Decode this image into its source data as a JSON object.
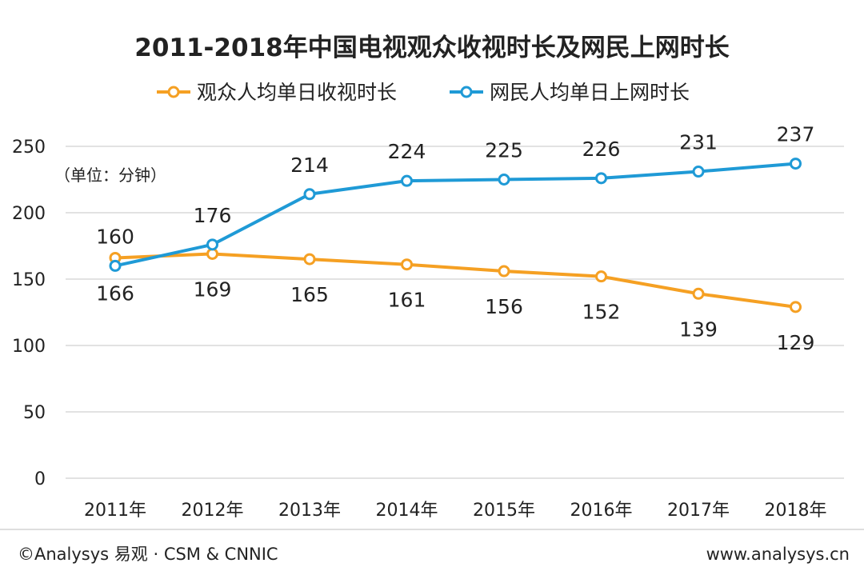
{
  "chart_data": {
    "type": "line",
    "title": "2011-2018年中国电视观众收视时长及网民上网时长",
    "unit_label": "（单位：分钟）",
    "categories": [
      "2011年",
      "2012年",
      "2013年",
      "2014年",
      "2015年",
      "2016年",
      "2017年",
      "2018年"
    ],
    "series": [
      {
        "name": "观众人均单日收视时长",
        "color": "#f5a023",
        "values": [
          166,
          169,
          165,
          161,
          156,
          152,
          139,
          129
        ],
        "label_position": "below"
      },
      {
        "name": "网民人均单日上网时长",
        "color": "#1f9ad6",
        "values": [
          160,
          176,
          214,
          224,
          225,
          226,
          231,
          237
        ],
        "label_position": "above"
      }
    ],
    "ylim": [
      0,
      250
    ],
    "yticks": [
      "0",
      "50",
      "100",
      "150",
      "200",
      "250"
    ],
    "grid": true,
    "legend_position": "top"
  },
  "footer": {
    "source": "©Analysys 易观 · CSM & CNNIC",
    "website": "www.analysys.cn"
  }
}
